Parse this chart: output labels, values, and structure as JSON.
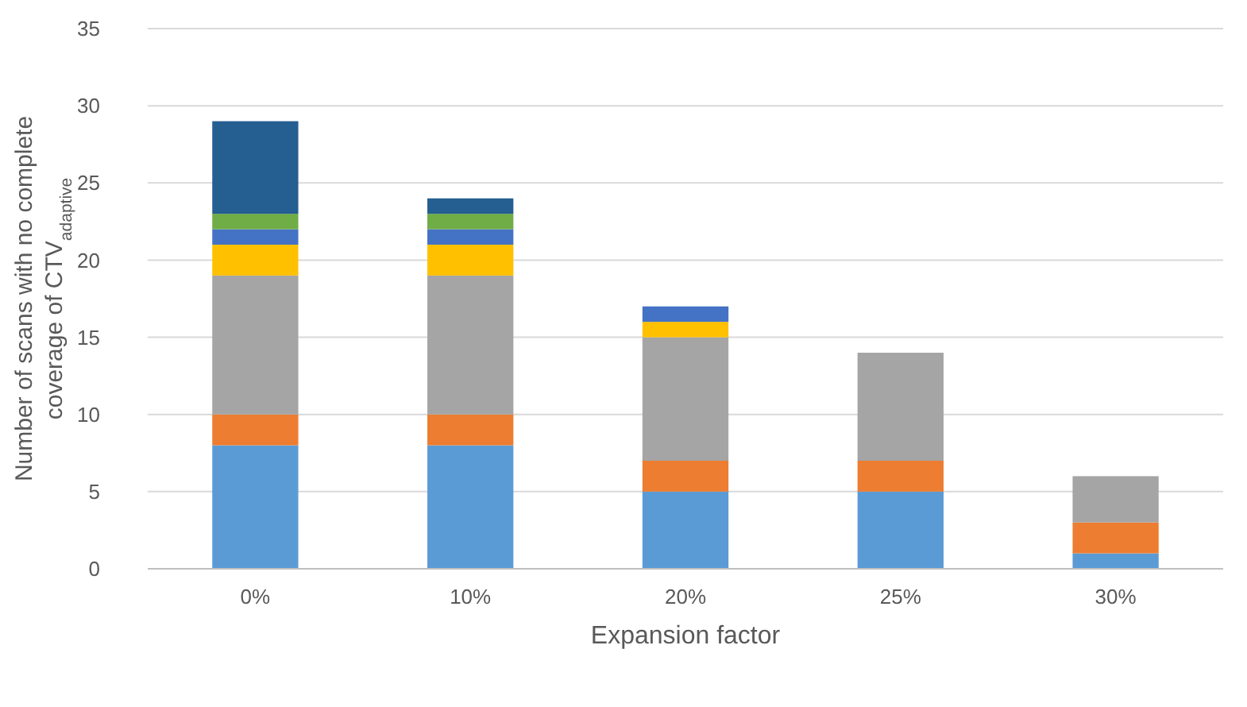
{
  "chart_data": {
    "type": "bar",
    "stacked": true,
    "xlabel": "Expansion factor",
    "ylabel": "Number of  scans with no complete coverage of CTV$_{adaptive}$",
    "categories": [
      "0%",
      "10%",
      "20%",
      "25%",
      "30%"
    ],
    "series": [
      {
        "color": "#5b9bd5",
        "values": [
          8,
          8,
          5,
          5,
          1
        ]
      },
      {
        "color": "#ed7d31",
        "values": [
          2,
          2,
          2,
          2,
          2
        ]
      },
      {
        "color": "#a5a5a5",
        "values": [
          9,
          9,
          8,
          7,
          3
        ]
      },
      {
        "color": "#ffc000",
        "values": [
          2,
          2,
          1,
          null,
          null
        ]
      },
      {
        "color": "#4472c4",
        "values": [
          1,
          1,
          1,
          null,
          null
        ]
      },
      {
        "color": "#70ad47",
        "values": [
          1,
          1,
          null,
          null,
          null
        ]
      },
      {
        "color": "#255e91",
        "values": [
          6,
          1,
          null,
          null,
          null
        ]
      }
    ],
    "ylim": [
      0,
      35
    ],
    "yticks": [
      0,
      5,
      10,
      15,
      20,
      25,
      30,
      35
    ],
    "grid": "y"
  }
}
